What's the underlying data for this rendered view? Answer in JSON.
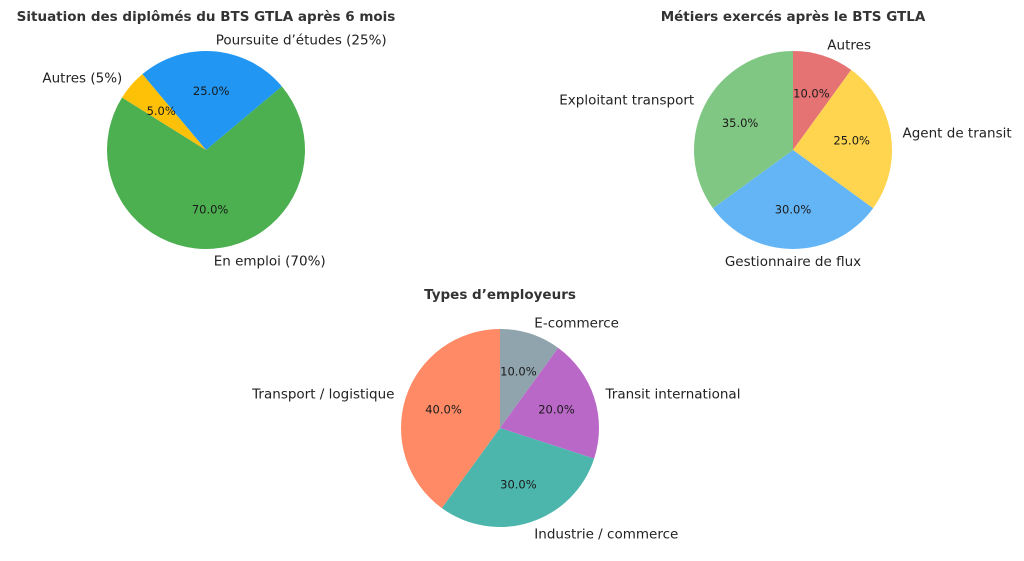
{
  "chart_data": [
    {
      "type": "pie",
      "title": "Situation des diplômés du BTS GTLA après 6 mois",
      "slices": [
        {
          "label": "En emploi (70%)",
          "value": 70,
          "pct_label": "70.0%",
          "color": "#4caf50"
        },
        {
          "label": "Poursuite d’études (25%)",
          "value": 25,
          "pct_label": "25.0%",
          "color": "#2196f3"
        },
        {
          "label": "Autres (5%)",
          "value": 5,
          "pct_label": "5.0%",
          "color": "#ffc107"
        }
      ]
    },
    {
      "type": "pie",
      "title": "Métiers exercés après le BTS GTLA",
      "slices": [
        {
          "label": "Autres",
          "value": 10,
          "pct_label": "10.0%",
          "color": "#e57373"
        },
        {
          "label": "Agent de transit",
          "value": 25,
          "pct_label": "25.0%",
          "color": "#ffd54f"
        },
        {
          "label": "Gestionnaire de flux",
          "value": 30,
          "pct_label": "30.0%",
          "color": "#64b5f6"
        },
        {
          "label": "Exploitant transport",
          "value": 35,
          "pct_label": "35.0%",
          "color": "#81c784"
        }
      ]
    },
    {
      "type": "pie",
      "title": "Types d’employeurs",
      "slices": [
        {
          "label": "E-commerce",
          "value": 10,
          "pct_label": "10.0%",
          "color": "#90a4ae"
        },
        {
          "label": "Transit international",
          "value": 20,
          "pct_label": "20.0%",
          "color": "#ba68c8"
        },
        {
          "label": "Industrie / commerce",
          "value": 30,
          "pct_label": "30.0%",
          "color": "#4db6ac"
        },
        {
          "label": "Transport / logistique",
          "value": 40,
          "pct_label": "40.0%",
          "color": "#ff8a65"
        }
      ]
    }
  ]
}
